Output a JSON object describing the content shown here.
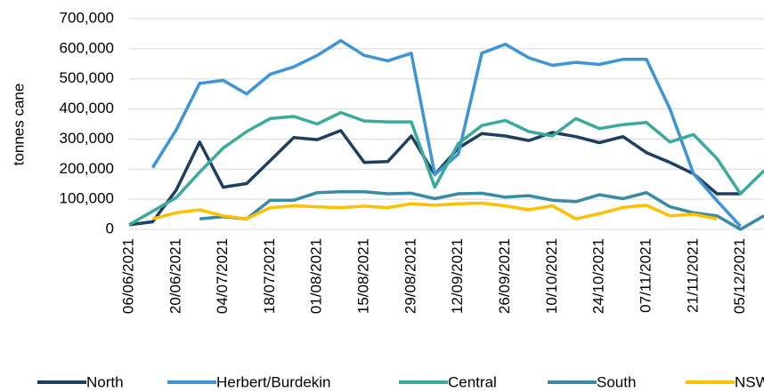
{
  "chart_data": {
    "type": "line",
    "y_label": "tonnes cane",
    "categories": [
      "06/06/2021",
      null,
      "20/06/2021",
      null,
      "04/07/2021",
      null,
      "18/07/2021",
      null,
      "01/08/2021",
      null,
      "15/08/2021",
      null,
      "29/08/2021",
      null,
      "12/09/2021",
      null,
      "26/09/2021",
      null,
      "10/10/2021",
      null,
      "24/10/2021",
      null,
      "07/11/2021",
      null,
      "21/11/2021",
      null,
      "05/12/2021",
      null
    ],
    "ylim": [
      0,
      700000
    ],
    "yticks": [
      {
        "value": 0,
        "label": "0"
      },
      {
        "value": 100000,
        "label": "100,000"
      },
      {
        "value": 200000,
        "label": "200,000"
      },
      {
        "value": 300000,
        "label": "300,000"
      },
      {
        "value": 400000,
        "label": "400,000"
      },
      {
        "value": 500000,
        "label": "500,000"
      },
      {
        "value": 600000,
        "label": "600,000"
      },
      {
        "value": 700000,
        "label": "700,000"
      }
    ],
    "grid": true,
    "legend": "bottom",
    "series": [
      {
        "name": "North",
        "color": "#1f3f5f",
        "values": [
          15000,
          25000,
          130000,
          290000,
          140000,
          152000,
          228000,
          305000,
          298000,
          328000,
          222000,
          225000,
          310000,
          182000,
          270000,
          318000,
          310000,
          295000,
          322000,
          308000,
          288000,
          308000,
          255000,
          222000,
          185000,
          118000,
          118000,
          null
        ]
      },
      {
        "name": "Herbert/Burdekin",
        "color": "#3d94d6",
        "values": [
          null,
          205000,
          330000,
          485000,
          495000,
          450000,
          515000,
          540000,
          578000,
          627000,
          578000,
          560000,
          585000,
          182000,
          250000,
          585000,
          615000,
          570000,
          545000,
          555000,
          548000,
          565000,
          565000,
          400000,
          185000,
          95000,
          10000,
          null
        ]
      },
      {
        "name": "Central",
        "color": "#3aab9b",
        "values": [
          15000,
          60000,
          105000,
          190000,
          270000,
          325000,
          368000,
          375000,
          350000,
          388000,
          360000,
          357000,
          357000,
          140000,
          285000,
          345000,
          362000,
          325000,
          310000,
          368000,
          335000,
          348000,
          355000,
          290000,
          315000,
          235000,
          118000,
          195000
        ]
      },
      {
        "name": "South",
        "color": "#3a8aa5",
        "values": [
          null,
          null,
          null,
          35000,
          42000,
          35000,
          97000,
          97000,
          122000,
          125000,
          125000,
          118000,
          120000,
          102000,
          118000,
          120000,
          107000,
          112000,
          97000,
          92000,
          115000,
          102000,
          122000,
          75000,
          55000,
          45000,
          0,
          45000
        ]
      },
      {
        "name": "NSW",
        "color": "#ffc000",
        "values": [
          null,
          35000,
          55000,
          65000,
          45000,
          35000,
          72000,
          78000,
          75000,
          72000,
          77000,
          72000,
          85000,
          80000,
          85000,
          87000,
          78000,
          65000,
          78000,
          35000,
          52000,
          73000,
          80000,
          45000,
          50000,
          35000,
          null,
          null
        ]
      }
    ]
  }
}
